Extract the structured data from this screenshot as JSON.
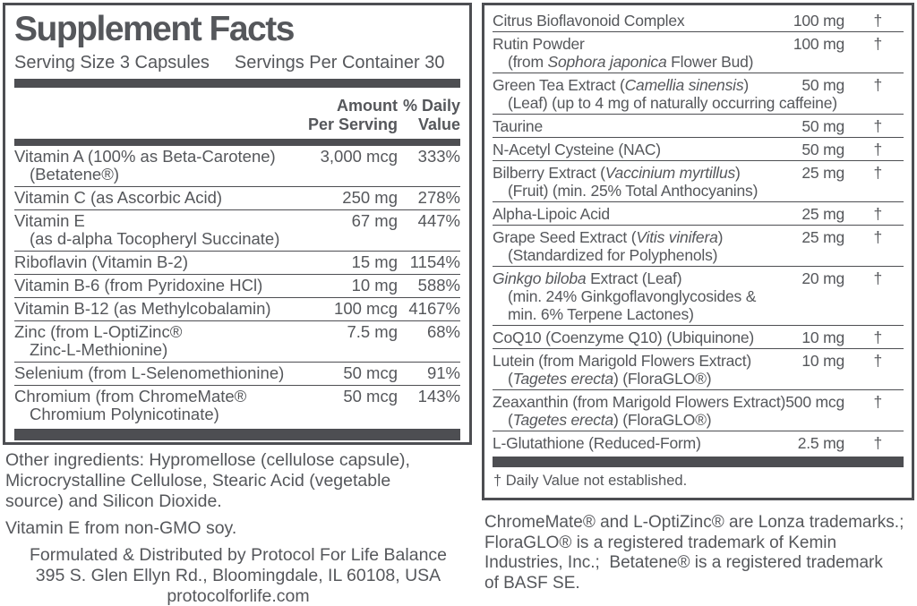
{
  "colors": {
    "text": "#55575b",
    "bar": "#4d4e52",
    "border": "#4d4e52",
    "background": "#ffffff"
  },
  "left_panel": {
    "title": "Supplement Facts",
    "serving_size": "Serving Size 3 Capsules",
    "servings_per_container": "Servings Per Container 30",
    "header": {
      "amount_line1": "Amount",
      "amount_line2": "Per Serving",
      "dv_line1": "% Daily",
      "dv_line2": "Value"
    },
    "rows": [
      {
        "name_lines": [
          [
            {
              "t": "Vitamin A (100% as Beta-Carotene)"
            }
          ],
          [
            {
              "t": "(Betatene®)"
            }
          ]
        ],
        "amount": "3,000 mcg",
        "dv": "333%"
      },
      {
        "name_lines": [
          [
            {
              "t": "Vitamin C (as Ascorbic Acid)"
            }
          ]
        ],
        "amount": "250 mg",
        "dv": "278%"
      },
      {
        "name_lines": [
          [
            {
              "t": "Vitamin E"
            }
          ],
          [
            {
              "t": "(as d-alpha Tocopheryl Succinate)"
            }
          ]
        ],
        "amount": "67 mg",
        "dv": "447%"
      },
      {
        "name_lines": [
          [
            {
              "t": "Riboflavin (Vitamin B-2)"
            }
          ]
        ],
        "amount": "15 mg",
        "dv": "1154%"
      },
      {
        "name_lines": [
          [
            {
              "t": "Vitamin B-6 (from Pyridoxine HCl)"
            }
          ]
        ],
        "amount": "10 mg",
        "dv": "588%"
      },
      {
        "name_lines": [
          [
            {
              "t": "Vitamin B-12 (as Methylcobalamin)"
            }
          ]
        ],
        "amount": "100 mcg",
        "dv": "4167%"
      },
      {
        "name_lines": [
          [
            {
              "t": "Zinc (from L-OptiZinc®"
            }
          ],
          [
            {
              "t": "Zinc-L-Methionine)"
            }
          ]
        ],
        "amount": "7.5 mg",
        "dv": "68%"
      },
      {
        "name_lines": [
          [
            {
              "t": "Selenium (from L-Selenomethionine)"
            }
          ]
        ],
        "amount": "50 mcg",
        "dv": "91%"
      },
      {
        "name_lines": [
          [
            {
              "t": "Chromium (from ChromeMate®"
            }
          ],
          [
            {
              "t": "Chromium Polynicotinate)"
            }
          ]
        ],
        "amount": "50 mcg",
        "dv": "143%"
      }
    ]
  },
  "left_footer": {
    "other_ingredients_lines": [
      "Other ingredients: Hypromellose (cellulose capsule),",
      "Microcrystalline Cellulose, Stearic Acid (vegetable",
      "source) and Silicon Dioxide."
    ],
    "non_gmo": "Vitamin E from non-GMO soy.",
    "distributor_lines": [
      "Formulated & Distributed by Protocol For Life Balance",
      "395 S. Glen Ellyn Rd., Bloomingdale, IL 60108, USA",
      "protocolforlife.com"
    ]
  },
  "right_panel": {
    "rows": [
      {
        "name_lines": [
          [
            {
              "t": "Citrus Bioflavonoid Complex"
            }
          ]
        ],
        "amount": "100 mg",
        "dv": "†"
      },
      {
        "name_lines": [
          [
            {
              "t": "Rutin Powder"
            }
          ],
          [
            {
              "t": "(from "
            },
            {
              "t": "Sophora japonica",
              "i": true
            },
            {
              "t": " Flower Bud)"
            }
          ]
        ],
        "amount": "100 mg",
        "dv": "†"
      },
      {
        "name_lines": [
          [
            {
              "t": "Green Tea Extract ("
            },
            {
              "t": "Camellia sinensis",
              "i": true
            },
            {
              "t": ")"
            }
          ],
          [
            {
              "t": "(Leaf) (up to 4 mg of naturally occurring caffeine)"
            }
          ]
        ],
        "amount": "50 mg",
        "dv": "†"
      },
      {
        "name_lines": [
          [
            {
              "t": "Taurine"
            }
          ]
        ],
        "amount": "50 mg",
        "dv": "†"
      },
      {
        "name_lines": [
          [
            {
              "t": "N-Acetyl Cysteine (NAC)"
            }
          ]
        ],
        "amount": "50 mg",
        "dv": "†"
      },
      {
        "name_lines": [
          [
            {
              "t": "Bilberry Extract ("
            },
            {
              "t": "Vaccinium myrtillus",
              "i": true
            },
            {
              "t": ")"
            }
          ],
          [
            {
              "t": "(Fruit) (min. 25% Total Anthocyanins)"
            }
          ]
        ],
        "amount": "25 mg",
        "dv": "†"
      },
      {
        "name_lines": [
          [
            {
              "t": "Alpha-Lipoic Acid"
            }
          ]
        ],
        "amount": "25 mg",
        "dv": "†"
      },
      {
        "name_lines": [
          [
            {
              "t": "Grape Seed Extract ("
            },
            {
              "t": "Vitis vinifera",
              "i": true
            },
            {
              "t": ")"
            }
          ],
          [
            {
              "t": "(Standardized for Polyphenols)"
            }
          ]
        ],
        "amount": "25 mg",
        "dv": "†"
      },
      {
        "name_lines": [
          [
            {
              "t": "Ginkgo biloba",
              "i": true
            },
            {
              "t": " Extract (Leaf)"
            }
          ],
          [
            {
              "t": "(min. 24% Ginkgoflavonglycosides &"
            }
          ],
          [
            {
              "t": "min. 6% Terpene Lactones)"
            }
          ]
        ],
        "amount": "20 mg",
        "dv": "†"
      },
      {
        "name_lines": [
          [
            {
              "t": "CoQ10 (Coenzyme Q10) (Ubiquinone)"
            }
          ]
        ],
        "amount": "10 mg",
        "dv": "†"
      },
      {
        "name_lines": [
          [
            {
              "t": "Lutein (from Marigold Flowers Extract)"
            }
          ],
          [
            {
              "t": "("
            },
            {
              "t": "Tagetes erecta",
              "i": true
            },
            {
              "t": ") (FloraGLO®)"
            }
          ]
        ],
        "amount": "10 mg",
        "dv": "†"
      },
      {
        "name_lines": [
          [
            {
              "t": "Zeaxanthin (from Marigold Flowers Extract)"
            }
          ],
          [
            {
              "t": "("
            },
            {
              "t": "Tagetes erecta",
              "i": true
            },
            {
              "t": ") (FloraGLO®)"
            }
          ]
        ],
        "amount": "500 mcg",
        "dv": "†"
      },
      {
        "name_lines": [
          [
            {
              "t": "L-Glutathione (Reduced-Form)"
            }
          ]
        ],
        "amount": "2.5 mg",
        "dv": "†"
      }
    ],
    "footnote": "† Daily Value not established."
  },
  "right_footer": {
    "lines": [
      "ChromeMate® and L-OptiZinc® are Lonza trademarks.;",
      "FloraGLO® is a registered trademark of Kemin",
      "Industries, Inc.;  Betatene® is a registered trademark",
      "of BASF SE."
    ]
  }
}
